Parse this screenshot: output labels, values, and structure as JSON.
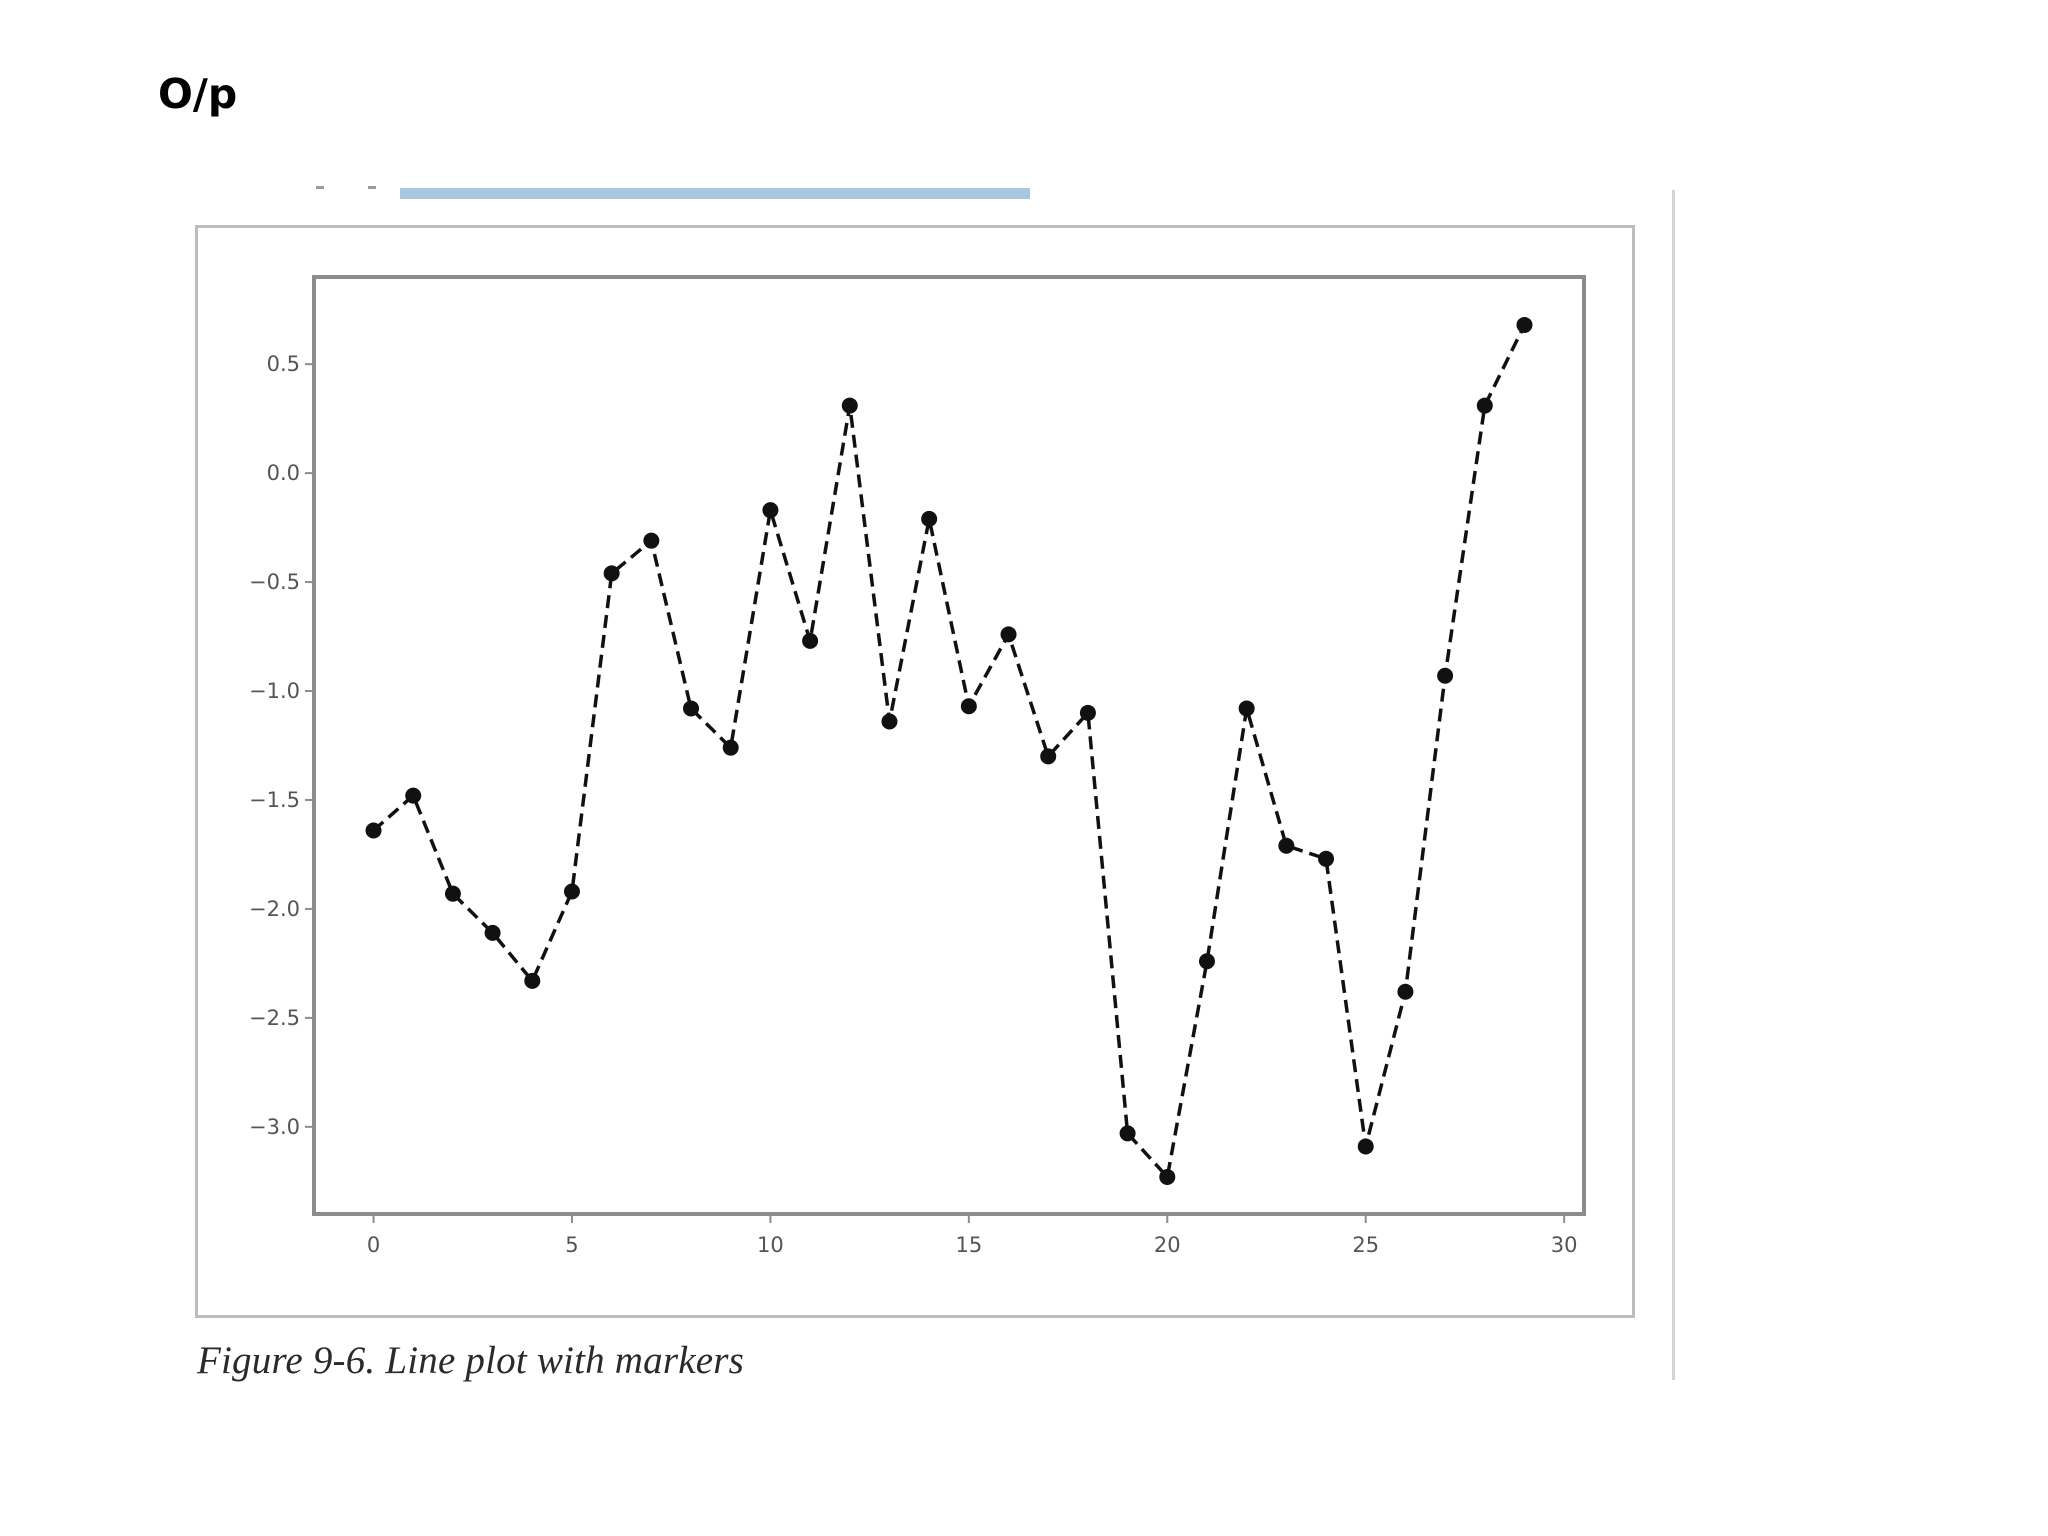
{
  "page": {
    "heading": "O/p",
    "caption": "Figure 9-6. Line plot with markers"
  },
  "colors": {
    "top_bar": "#a9c7df",
    "line": "#111111",
    "axes": "#8c8c8c",
    "frame": "#bdbdbd"
  },
  "chart_data": {
    "type": "line",
    "title": "",
    "xlabel": "",
    "ylabel": "",
    "xlim": [
      -1.5,
      30.5
    ],
    "ylim": [
      -3.4,
      0.9
    ],
    "xticks": [
      0,
      5,
      10,
      15,
      20,
      25,
      30
    ],
    "xtick_labels": [
      "0",
      "5",
      "10",
      "15",
      "20",
      "25",
      "30"
    ],
    "yticks": [
      0.5,
      0.0,
      -0.5,
      -1.0,
      -1.5,
      -2.0,
      -2.5,
      -3.0
    ],
    "ytick_labels": [
      "0.5",
      "0.0",
      "−0.5",
      "−1.0",
      "−1.5",
      "−2.0",
      "−2.5",
      "−3.0"
    ],
    "grid": false,
    "line_style": "dashed",
    "marker": "circle",
    "series": [
      {
        "x": [
          0,
          1,
          2,
          3,
          4,
          5,
          6,
          7,
          8,
          9,
          10,
          11,
          12,
          13,
          14,
          15,
          16,
          17,
          18,
          19,
          20,
          21,
          22,
          23,
          24,
          25,
          26,
          27,
          28,
          29
        ],
        "y": [
          -1.64,
          -1.48,
          -1.93,
          -2.11,
          -2.33,
          -1.92,
          -0.46,
          -0.31,
          -1.08,
          -1.26,
          -0.17,
          -0.77,
          0.31,
          -1.14,
          -0.21,
          -1.07,
          -0.74,
          -1.3,
          -1.1,
          -3.03,
          -3.23,
          -2.24,
          -1.08,
          -1.71,
          -1.77,
          -3.09,
          -2.38,
          -0.93,
          0.31,
          0.68
        ]
      }
    ]
  }
}
